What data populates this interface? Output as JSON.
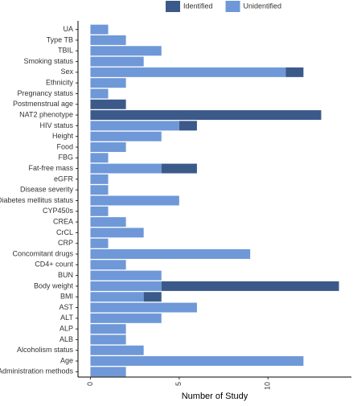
{
  "chart_data": {
    "type": "stacked-barh",
    "x_label": "Number of Study",
    "categories": [
      "UA",
      "Type TB",
      "TBIL",
      "Smoking status",
      "Sex",
      "Ethnicity",
      "Pregnancy status",
      "Postmenstrual age",
      "NAT2 phenotype",
      "HIV status",
      "Height",
      "Food",
      "FBG",
      "Fat-free mass",
      "eGFR",
      "Disease severity",
      "Diabetes mellitus status",
      "CYP450s",
      "CREA",
      "CrCL",
      "CRP",
      "Concomitant drugs",
      "CD4+ count",
      "BUN",
      "Body weight",
      "BMI",
      "AST",
      "ALT",
      "ALP",
      "ALB",
      "Alcoholism status",
      "Age",
      "Administration methods"
    ],
    "series": [
      {
        "name": "Unidentified",
        "color": "#6f98d8",
        "values": [
          1,
          2,
          4,
          3,
          11,
          2,
          1,
          0,
          0,
          5,
          4,
          2,
          1,
          4,
          1,
          1,
          5,
          1,
          2,
          3,
          1,
          9,
          2,
          4,
          4,
          3,
          6,
          4,
          2,
          2,
          3,
          12,
          2
        ]
      },
      {
        "name": "Identified",
        "color": "#3b5a8a",
        "values": [
          0,
          0,
          0,
          0,
          1,
          0,
          0,
          2,
          13,
          1,
          0,
          0,
          0,
          2,
          0,
          0,
          0,
          0,
          0,
          0,
          0,
          0,
          0,
          0,
          10,
          1,
          0,
          0,
          0,
          0,
          0,
          0,
          0
        ]
      }
    ],
    "legend_order": [
      "Identified",
      "Unidentified"
    ],
    "xlim": [
      -0.7,
      14.7
    ],
    "xticks": [
      0,
      5,
      10
    ],
    "grid": false,
    "legend_position": "top"
  }
}
